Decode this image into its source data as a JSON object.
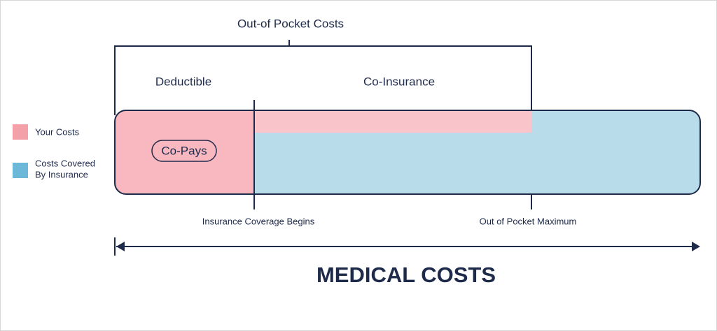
{
  "title": "Out-of Pocket Costs",
  "phases": {
    "deductible": "Deductible",
    "co_insurance": "Co-Insurance",
    "co_pays": "Co-Pays"
  },
  "legend": {
    "your_costs": "Your Costs",
    "covered": [
      "Costs Covered",
      "By Insurance"
    ]
  },
  "markers": {
    "coverage_begins": "Insurance Coverage Begins",
    "out_of_pocket_max": "Out of Pocket Maximum"
  },
  "axis_label": "MEDICAL COSTS"
}
